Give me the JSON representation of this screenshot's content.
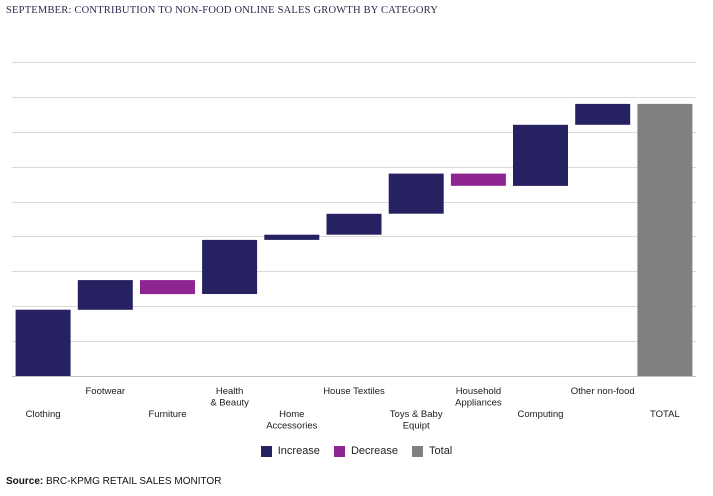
{
  "chart_data": {
    "type": "bar",
    "subtype": "waterfall",
    "title": "SEPTEMBER: CONTRIBUTION TO NON-FOOD ONLINE SALES GROWTH BY CATEGORY",
    "categories": [
      "Clothing",
      "Footwear",
      "Furniture",
      "Health & Beauty",
      "Home Accessories",
      "House Textiles",
      "Toys & Baby Equipt",
      "Household Appliances",
      "Computing",
      "Other non-food",
      "TOTAL"
    ],
    "category_labels": [
      [
        "Clothing"
      ],
      [
        "Footwear"
      ],
      [
        "Furniture"
      ],
      [
        "Health",
        "& Beauty"
      ],
      [
        "Home",
        "Accessories"
      ],
      [
        "House Textiles"
      ],
      [
        "Toys & Baby",
        "Equipt"
      ],
      [
        "Household",
        "Appliances"
      ],
      [
        "Computing"
      ],
      [
        "Other non-food"
      ],
      [
        "TOTAL"
      ]
    ],
    "label_rows": [
      "low",
      "high",
      "low",
      "high",
      "low",
      "high",
      "low",
      "high",
      "low",
      "high",
      "low"
    ],
    "kinds": [
      "increase",
      "increase",
      "decrease",
      "increase",
      "increase",
      "increase",
      "increase",
      "decrease",
      "increase",
      "increase",
      "total"
    ],
    "values": [
      1.9,
      0.85,
      -0.4,
      1.55,
      0.15,
      0.6,
      1.15,
      -0.35,
      1.75,
      0.6,
      7.8
    ],
    "ylim": [
      0,
      9
    ],
    "grid": true,
    "colors": {
      "increase": "#262262",
      "decrease": "#8e2590",
      "total": "#808080",
      "grid": "#d9d9d9",
      "axis": "#bfbfbf"
    },
    "legend": [
      {
        "key": "increase",
        "label": "Increase"
      },
      {
        "key": "decrease",
        "label": "Decrease"
      },
      {
        "key": "total",
        "label": "Total"
      }
    ],
    "legend_position": "bottom"
  },
  "source": {
    "prefix": "Source:",
    "text": "BRC-KPMG RETAIL SALES MONITOR"
  }
}
